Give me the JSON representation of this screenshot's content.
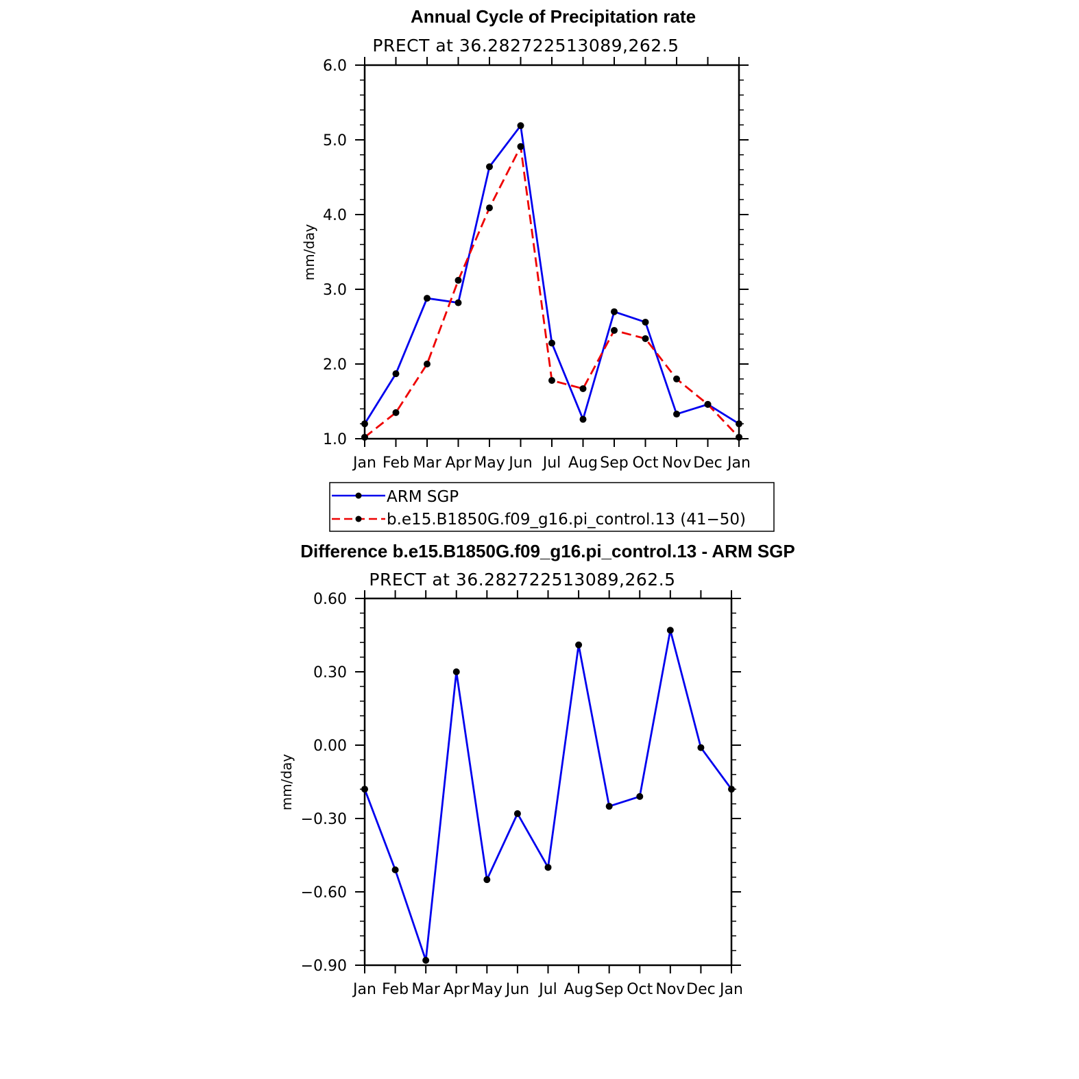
{
  "colors": {
    "observed": "#0000ee",
    "model": "#ee0000",
    "marker": "#000000",
    "axis": "#000000"
  },
  "chart_data": [
    {
      "type": "line",
      "title": "Annual Cycle of Precipitation rate",
      "subtitle": "PRECT at 36.282722513089,262.5",
      "xlabel": "",
      "ylabel": "mm/day",
      "categories": [
        "Jan",
        "Feb",
        "Mar",
        "Apr",
        "May",
        "Jun",
        "Jul",
        "Aug",
        "Sep",
        "Oct",
        "Nov",
        "Dec",
        "Jan"
      ],
      "ylim": [
        1.0,
        6.0
      ],
      "yticks": [
        "1.0",
        "2.0",
        "3.0",
        "4.0",
        "5.0",
        "6.0"
      ],
      "y_minor_step": 0.2,
      "grid": false,
      "series": [
        {
          "name": "ARM SGP",
          "style": "solid",
          "values": [
            1.2,
            1.87,
            2.88,
            2.82,
            4.64,
            5.19,
            2.28,
            1.26,
            2.7,
            2.56,
            1.33,
            1.46,
            1.2
          ]
        },
        {
          "name": "b.e15.B1850G.f09_g16.pi_control.13 (41−50)",
          "style": "dashed",
          "values": [
            1.02,
            1.35,
            2.0,
            3.12,
            4.09,
            4.91,
            1.78,
            1.67,
            2.45,
            2.34,
            1.8,
            1.46,
            1.02
          ]
        }
      ],
      "legend": {
        "placement": "below"
      }
    },
    {
      "type": "line",
      "title": "Difference b.e15.B1850G.f09_g16.pi_control.13 - ARM SGP",
      "subtitle": "PRECT at 36.282722513089,262.5",
      "xlabel": "",
      "ylabel": "mm/day",
      "categories": [
        "Jan",
        "Feb",
        "Mar",
        "Apr",
        "May",
        "Jun",
        "Jul",
        "Aug",
        "Sep",
        "Oct",
        "Nov",
        "Dec",
        "Jan"
      ],
      "ylim": [
        -0.9,
        0.6
      ],
      "yticks": [
        "−0.90",
        "−0.60",
        "−0.30",
        "0.00",
        "0.30",
        "0.60"
      ],
      "y_minor_step": 0.06,
      "grid": false,
      "series": [
        {
          "style": "solid",
          "values": [
            -0.18,
            -0.51,
            -0.88,
            0.3,
            -0.55,
            -0.28,
            -0.5,
            0.41,
            -0.25,
            -0.21,
            0.47,
            -0.01,
            -0.18
          ]
        }
      ]
    }
  ]
}
